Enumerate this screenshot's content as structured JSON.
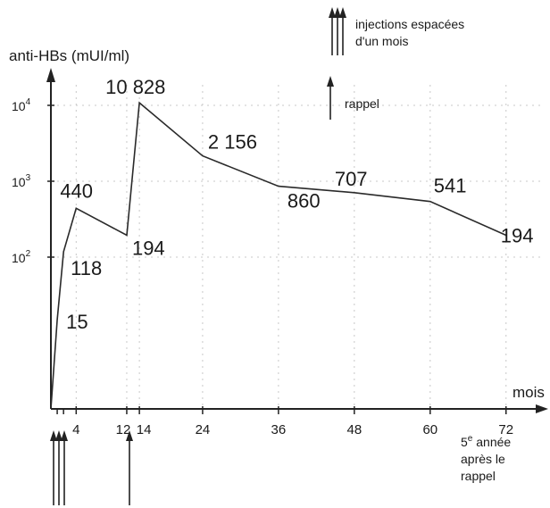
{
  "chart_data": {
    "type": "line",
    "title": "",
    "ylabel": "anti-HBs (mUI/ml)",
    "xlabel": "mois",
    "y_scale": "log",
    "ylim": [
      1,
      20000
    ],
    "xlim": [
      0,
      75
    ],
    "y_ticks": [
      {
        "value": 100,
        "base": "10",
        "exp": "2"
      },
      {
        "value": 1000,
        "base": "10",
        "exp": "3"
      },
      {
        "value": 10000,
        "base": "10",
        "exp": "4"
      }
    ],
    "x_ticks": [
      4,
      12,
      14,
      24,
      36,
      48,
      60,
      72
    ],
    "grid": true,
    "series": [
      {
        "x": [
          0,
          1,
          2,
          4,
          12,
          14,
          24,
          36,
          48,
          60,
          72
        ],
        "values": [
          1,
          15,
          118,
          440,
          194,
          10828,
          2156,
          860,
          707,
          541,
          194
        ],
        "labels": [
          "",
          "15",
          "118",
          "440",
          "194",
          "10 828",
          "2 156",
          "860",
          "707",
          "541",
          "194"
        ]
      }
    ],
    "annotations": {
      "injections": [
        "injections espacées",
        "d'un mois"
      ],
      "rappel": "rappel",
      "fifth_year": [
        "5e année",
        "après le",
        "rappel"
      ]
    }
  }
}
